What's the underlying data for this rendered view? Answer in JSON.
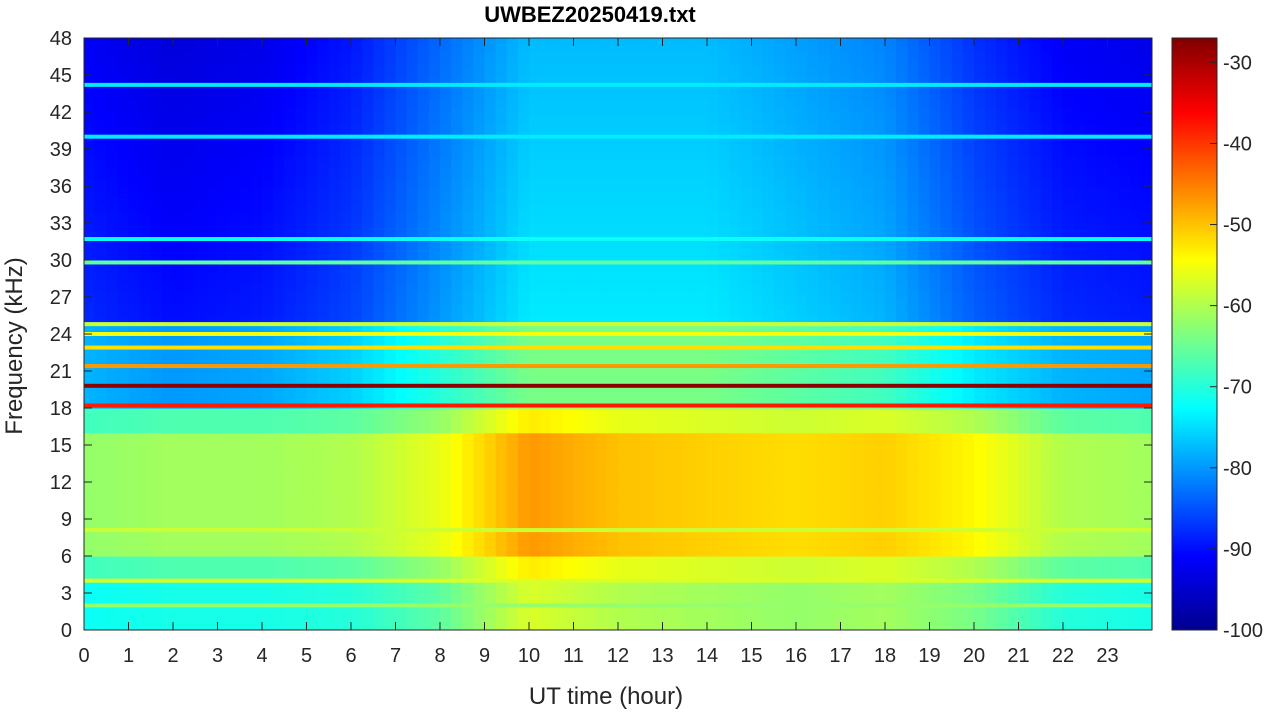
{
  "chart_data": {
    "type": "heatmap",
    "title": "UWBEZ20250419.txt",
    "xlabel": "UT time (hour)",
    "ylabel": "Frequency (kHz)",
    "xlim": [
      0,
      24
    ],
    "ylim": [
      0,
      48
    ],
    "x_ticks": [
      0,
      1,
      2,
      3,
      4,
      5,
      6,
      7,
      8,
      9,
      10,
      11,
      12,
      13,
      14,
      15,
      16,
      17,
      18,
      19,
      20,
      21,
      22,
      23
    ],
    "y_ticks": [
      0,
      3,
      6,
      9,
      12,
      15,
      18,
      21,
      24,
      27,
      30,
      33,
      36,
      39,
      42,
      45,
      48
    ],
    "colorbar": {
      "colormap": "jet",
      "clim": [
        -100,
        -27
      ],
      "ticks": [
        -100,
        -90,
        -80,
        -70,
        -60,
        -50,
        -40,
        -30
      ]
    },
    "narrowband_lines": [
      {
        "freq_khz": 19.8,
        "level_db": -28
      },
      {
        "freq_khz": 18.2,
        "level_db": -38
      },
      {
        "freq_khz": 21.4,
        "level_db": -47
      },
      {
        "freq_khz": 22.9,
        "level_db": -52
      },
      {
        "freq_khz": 24.0,
        "level_db": -55
      },
      {
        "freq_khz": 24.8,
        "level_db": -58
      },
      {
        "freq_khz": 4.0,
        "level_db": -57
      },
      {
        "freq_khz": 8.1,
        "level_db": -58
      },
      {
        "freq_khz": 2.0,
        "level_db": -62
      },
      {
        "freq_khz": 44.2,
        "level_db": -74
      },
      {
        "freq_khz": 40.0,
        "level_db": -74
      },
      {
        "freq_khz": 31.7,
        "level_db": -72
      },
      {
        "freq_khz": 29.8,
        "level_db": -66
      }
    ],
    "grid": [
      {
        "hour": 0,
        "low_band_db": -62,
        "upper_band_db": -88
      },
      {
        "hour": 2,
        "low_band_db": -61,
        "upper_band_db": -90
      },
      {
        "hour": 4,
        "low_band_db": -61,
        "upper_band_db": -89
      },
      {
        "hour": 6,
        "low_band_db": -60,
        "upper_band_db": -86
      },
      {
        "hour": 8,
        "low_band_db": -56,
        "upper_band_db": -80
      },
      {
        "hour": 10,
        "low_band_db": -47,
        "upper_band_db": -74
      },
      {
        "hour": 12,
        "low_band_db": -50,
        "upper_band_db": -74
      },
      {
        "hour": 14,
        "low_band_db": -51,
        "upper_band_db": -74
      },
      {
        "hour": 16,
        "low_band_db": -52,
        "upper_band_db": -76
      },
      {
        "hour": 18,
        "low_band_db": -51,
        "upper_band_db": -78
      },
      {
        "hour": 20,
        "low_band_db": -54,
        "upper_band_db": -84
      },
      {
        "hour": 22,
        "low_band_db": -60,
        "upper_band_db": -88
      },
      {
        "hour": 24,
        "low_band_db": -61,
        "upper_band_db": -89
      }
    ]
  }
}
